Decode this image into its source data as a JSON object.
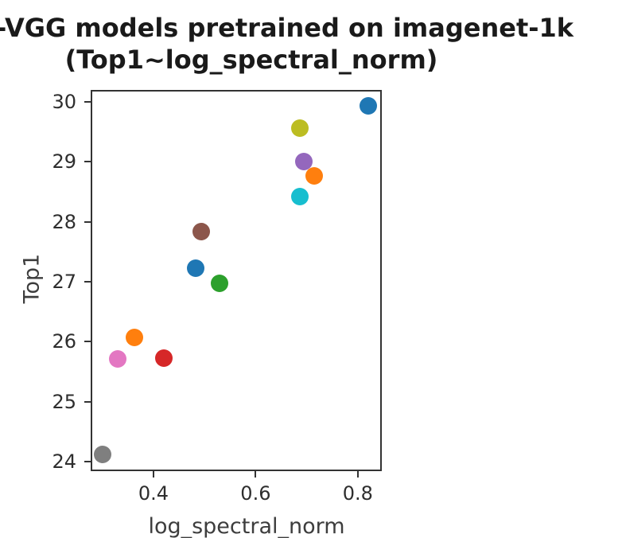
{
  "figure": {
    "background": "#ffffff",
    "axis_color": "#333333",
    "tick_label_color": "#2e2e2e",
    "title_color": "#1a1a1a"
  },
  "chart_data": {
    "type": "scatter",
    "title_line1": "-VGG models pretrained on imagenet-1k",
    "title_line2": "(Top1~log_spectral_norm)",
    "xlabel": "log_spectral_norm",
    "ylabel": "Top1",
    "xlim": [
      0.277,
      0.847
    ],
    "ylim": [
      23.84,
      30.2
    ],
    "x_ticks": [
      0.4,
      0.6,
      0.8
    ],
    "x_tick_labels": [
      "0.4",
      "0.6",
      "0.8"
    ],
    "y_ticks": [
      30,
      29,
      28,
      27,
      26,
      25,
      24
    ],
    "y_tick_labels": [
      "30",
      "29",
      "28",
      "27",
      "26",
      "25",
      "24"
    ],
    "grid": false,
    "legend": "none",
    "marker_diameter_px": 22,
    "points": [
      {
        "x": 0.482,
        "y": 27.22,
        "color": "#1f77b4",
        "color_name": "blue"
      },
      {
        "x": 0.362,
        "y": 26.07,
        "color": "#ff7f0e",
        "color_name": "orange"
      },
      {
        "x": 0.529,
        "y": 26.97,
        "color": "#2ca02c",
        "color_name": "green"
      },
      {
        "x": 0.42,
        "y": 25.72,
        "color": "#d62728",
        "color_name": "red"
      },
      {
        "x": 0.695,
        "y": 29.01,
        "color": "#9467bd",
        "color_name": "purple"
      },
      {
        "x": 0.494,
        "y": 27.83,
        "color": "#8c564b",
        "color_name": "brown"
      },
      {
        "x": 0.33,
        "y": 25.71,
        "color": "#e377c2",
        "color_name": "pink"
      },
      {
        "x": 0.301,
        "y": 24.12,
        "color": "#7f7f7f",
        "color_name": "gray"
      },
      {
        "x": 0.686,
        "y": 29.56,
        "color": "#bcbd22",
        "color_name": "olive"
      },
      {
        "x": 0.687,
        "y": 28.42,
        "color": "#17becf",
        "color_name": "cyan"
      },
      {
        "x": 0.82,
        "y": 29.93,
        "color": "#1f77b4",
        "color_name": "blue"
      },
      {
        "x": 0.715,
        "y": 28.76,
        "color": "#ff7f0e",
        "color_name": "orange"
      }
    ]
  }
}
